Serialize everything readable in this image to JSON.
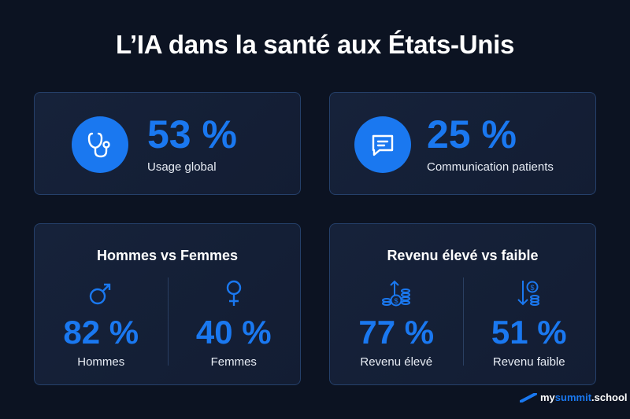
{
  "title": "L’IA dans la santé aux États-Unis",
  "colors": {
    "accent": "#1a78f0",
    "background": "#0c1322",
    "card": "#16223a"
  },
  "cards": [
    {
      "icon": "stethoscope-icon",
      "value": "53 %",
      "label": "Usage global"
    },
    {
      "icon": "chat-bubble-icon",
      "value": "25 %",
      "label": "Communication patients"
    }
  ],
  "comparisons": [
    {
      "title": "Hommes vs Femmes",
      "items": [
        {
          "icon": "male-symbol-icon",
          "value": "82 %",
          "label": "Hommes"
        },
        {
          "icon": "female-symbol-icon",
          "value": "40 %",
          "label": "Femmes"
        }
      ]
    },
    {
      "title": "Revenu élevé vs faible",
      "items": [
        {
          "icon": "coins-arrow-up-icon",
          "value": "77 %",
          "label": "Revenu élevé"
        },
        {
          "icon": "coins-arrow-down-icon",
          "value": "51 %",
          "label": "Revenu faible"
        }
      ]
    }
  ],
  "logo": {
    "part1": "my",
    "part2": "summit",
    "part3": ".school"
  }
}
